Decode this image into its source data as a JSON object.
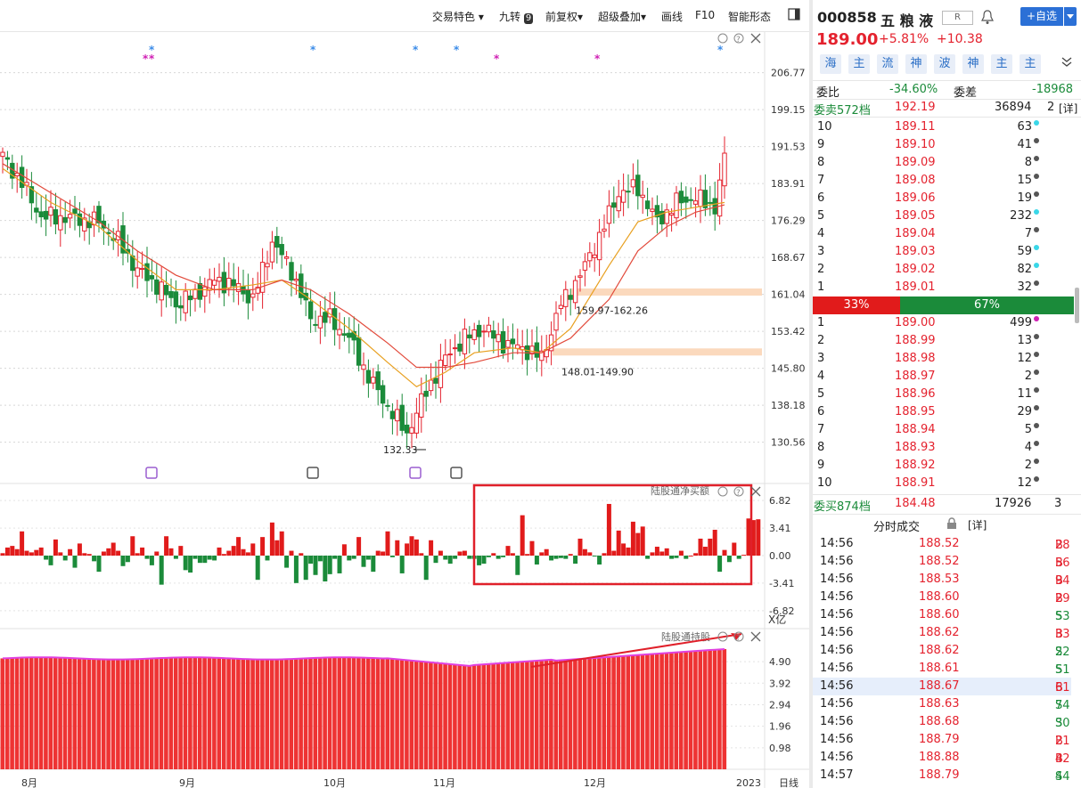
{
  "toolbar": {
    "items": [
      "交易特色 ▾",
      "九转",
      "前复权▾",
      "超级叠加▾",
      "画线",
      "F10",
      "智能形态"
    ],
    "jiuzhuan_badge": "9"
  },
  "stock": {
    "code": "000858",
    "name": "五 粮 液",
    "tag": "R",
    "add_button": "+自选",
    "price": "189.00",
    "change_pct": "+5.81%",
    "change": "+10.38",
    "tags": [
      "海",
      "主",
      "流",
      "神",
      "波",
      "神",
      "主",
      "主"
    ]
  },
  "order_book": {
    "weibi_label": "委比",
    "weibi_value": "-34.60%",
    "weicha_label": "委差",
    "weicha_value": "-18968",
    "sell_summary": {
      "label": "委卖572档",
      "price": "192.19",
      "volume": "36894",
      "count": "2",
      "detail": "[详]"
    },
    "asks": [
      {
        "level": "10",
        "price": "189.11",
        "volume": "63",
        "dot": "#3ad7e8"
      },
      {
        "level": "9",
        "price": "189.10",
        "volume": "41",
        "dot": "#555555"
      },
      {
        "level": "8",
        "price": "189.09",
        "volume": "8",
        "dot": "#555555"
      },
      {
        "level": "7",
        "price": "189.08",
        "volume": "15",
        "dot": "#555555"
      },
      {
        "level": "6",
        "price": "189.06",
        "volume": "19",
        "dot": "#555555"
      },
      {
        "level": "5",
        "price": "189.05",
        "volume": "232",
        "dot": "#3ad7e8"
      },
      {
        "level": "4",
        "price": "189.04",
        "volume": "7",
        "dot": "#555555"
      },
      {
        "level": "3",
        "price": "189.03",
        "volume": "59",
        "dot": "#3ad7e8"
      },
      {
        "level": "2",
        "price": "189.02",
        "volume": "82",
        "dot": "#3ad7e8"
      },
      {
        "level": "1",
        "price": "189.01",
        "volume": "32",
        "dot": "#555555"
      }
    ],
    "ratio_sell": "33%",
    "ratio_buy": "67%",
    "bids": [
      {
        "level": "1",
        "price": "189.00",
        "volume": "499",
        "dot": "#d01fb4"
      },
      {
        "level": "2",
        "price": "188.99",
        "volume": "13",
        "dot": "#555555"
      },
      {
        "level": "3",
        "price": "188.98",
        "volume": "12",
        "dot": "#555555"
      },
      {
        "level": "4",
        "price": "188.97",
        "volume": "2",
        "dot": "#555555"
      },
      {
        "level": "5",
        "price": "188.96",
        "volume": "11",
        "dot": "#555555"
      },
      {
        "level": "6",
        "price": "188.95",
        "volume": "29",
        "dot": "#555555"
      },
      {
        "level": "7",
        "price": "188.94",
        "volume": "5",
        "dot": "#555555"
      },
      {
        "level": "8",
        "price": "188.93",
        "volume": "4",
        "dot": "#555555"
      },
      {
        "level": "9",
        "price": "188.92",
        "volume": "2",
        "dot": "#555555"
      },
      {
        "level": "10",
        "price": "188.91",
        "volume": "12",
        "dot": "#555555"
      }
    ],
    "buy_summary": {
      "label": "委买874档",
      "price": "184.48",
      "volume": "17926",
      "count": "3"
    }
  },
  "trades": {
    "title": "分时成交",
    "detail": "[详]",
    "rows": [
      {
        "time": "14:56",
        "price": "188.52",
        "vol": "28",
        "side": "B"
      },
      {
        "time": "14:56",
        "price": "188.52",
        "vol": "56",
        "side": "B"
      },
      {
        "time": "14:56",
        "price": "188.53",
        "vol": "94",
        "side": "B"
      },
      {
        "time": "14:56",
        "price": "188.60",
        "vol": "29",
        "side": "B"
      },
      {
        "time": "14:56",
        "price": "188.60",
        "vol": "53",
        "side": "S"
      },
      {
        "time": "14:56",
        "price": "188.62",
        "vol": "33",
        "side": "B"
      },
      {
        "time": "14:56",
        "price": "188.62",
        "vol": "22",
        "side": "S"
      },
      {
        "time": "14:56",
        "price": "188.61",
        "vol": "51",
        "side": "S"
      },
      {
        "time": "14:56",
        "price": "188.67",
        "vol": "61",
        "side": "B"
      },
      {
        "time": "14:56",
        "price": "188.63",
        "vol": "74",
        "side": "S"
      },
      {
        "time": "14:56",
        "price": "188.68",
        "vol": "30",
        "side": "S"
      },
      {
        "time": "14:56",
        "price": "188.79",
        "vol": "21",
        "side": "B"
      },
      {
        "time": "14:56",
        "price": "188.88",
        "vol": "42",
        "side": "B"
      },
      {
        "time": "14:57",
        "price": "188.79",
        "vol": "44",
        "side": "S"
      }
    ]
  },
  "colors": {
    "up": "#e4222e",
    "down": "#1b8b3a",
    "ma_short": "#e8a020",
    "ma_long": "#e24a3b",
    "zone": "#fbd9bd"
  },
  "chart_data": {
    "type": "candlestick",
    "price_axis_ticks": [
      "206.77",
      "199.15",
      "191.53",
      "183.91",
      "176.29",
      "168.67",
      "161.04",
      "153.42",
      "145.80",
      "138.18",
      "130.56"
    ],
    "ylim": [
      127.0,
      210.0
    ],
    "x_labels": [
      "8月",
      "9月",
      "10月",
      "11月",
      "12月",
      "2023",
      "日线"
    ],
    "close_path": [
      [
        0,
        189.5
      ],
      [
        4,
        184
      ],
      [
        8,
        177
      ],
      [
        12,
        177
      ],
      [
        16,
        176.5
      ],
      [
        20,
        176
      ],
      [
        24,
        172
      ],
      [
        28,
        166
      ],
      [
        32,
        163
      ],
      [
        36,
        159
      ],
      [
        40,
        161
      ],
      [
        44,
        164
      ],
      [
        48,
        163
      ],
      [
        52,
        160
      ],
      [
        56,
        172
      ],
      [
        60,
        166
      ],
      [
        64,
        156
      ],
      [
        68,
        156
      ],
      [
        72,
        152
      ],
      [
        76,
        144
      ],
      [
        80,
        138
      ],
      [
        84,
        132.33
      ],
      [
        88,
        141
      ],
      [
        92,
        148
      ],
      [
        96,
        152
      ],
      [
        100,
        154
      ],
      [
        104,
        151
      ],
      [
        108,
        150
      ],
      [
        112,
        148.01
      ],
      [
        116,
        159
      ],
      [
        120,
        165
      ],
      [
        124,
        173
      ],
      [
        128,
        182
      ],
      [
        132,
        183
      ],
      [
        136,
        176
      ],
      [
        140,
        180
      ],
      [
        144,
        181
      ],
      [
        148,
        179
      ],
      [
        150,
        189
      ]
    ],
    "ma_short": [
      [
        0,
        187
      ],
      [
        10,
        180
      ],
      [
        20,
        175
      ],
      [
        28,
        168
      ],
      [
        36,
        162
      ],
      [
        44,
        162
      ],
      [
        52,
        163
      ],
      [
        58,
        164
      ],
      [
        64,
        160
      ],
      [
        72,
        154
      ],
      [
        80,
        147
      ],
      [
        86,
        142
      ],
      [
        92,
        145
      ],
      [
        98,
        149
      ],
      [
        106,
        150
      ],
      [
        112,
        149
      ],
      [
        118,
        154
      ],
      [
        126,
        167
      ],
      [
        132,
        176
      ],
      [
        138,
        178
      ],
      [
        144,
        179
      ],
      [
        150,
        180
      ]
    ],
    "ma_long": [
      [
        0,
        188
      ],
      [
        10,
        182
      ],
      [
        20,
        176
      ],
      [
        28,
        170
      ],
      [
        36,
        165
      ],
      [
        44,
        162
      ],
      [
        52,
        162
      ],
      [
        58,
        164
      ],
      [
        64,
        162
      ],
      [
        72,
        157
      ],
      [
        80,
        151
      ],
      [
        86,
        146
      ],
      [
        92,
        146
      ],
      [
        98,
        147
      ],
      [
        106,
        149
      ],
      [
        112,
        149
      ],
      [
        118,
        152
      ],
      [
        126,
        160
      ],
      [
        132,
        170
      ],
      [
        138,
        175
      ],
      [
        144,
        178
      ],
      [
        150,
        179.5
      ]
    ],
    "annotations": [
      {
        "text": "159.97-162.26",
        "low": 159.97,
        "high": 162.26
      },
      {
        "text": "148.01-149.90",
        "low": 148.01,
        "high": 149.9
      },
      {
        "text": "132.33",
        "value": 132.33
      }
    ],
    "flow": {
      "title": "陆股通净买额",
      "unit": "X亿",
      "ticks": [
        "6.82",
        "3.41",
        "0.00",
        "-3.41",
        "-6.82"
      ],
      "ylim": [
        -7.5,
        7.5
      ],
      "values": [
        0.3,
        1.0,
        1.2,
        0.8,
        3.0,
        0.6,
        0.4,
        0.7,
        1.0,
        -0.5,
        -1.2,
        2.0,
        0.4,
        -0.6,
        0.8,
        -1.5,
        1.5,
        0.3,
        0.2,
        -0.7,
        -2.0,
        0.5,
        0.9,
        1.6,
        0.6,
        -1.3,
        -0.8,
        2.4,
        0.3,
        1.0,
        -0.4,
        -1.2,
        0.5,
        -3.6,
        2.4,
        0.9,
        -0.4,
        1.2,
        -1.8,
        -2.1,
        -0.4,
        -0.9,
        -0.9,
        -0.5,
        -0.6,
        1.0,
        0.2,
        0.6,
        1.2,
        2.3,
        0.8,
        0.4,
        1.5,
        -3.0,
        2.3,
        -0.6,
        4.1,
        1.9,
        3.0,
        -1.5,
        0.6,
        -3.4,
        0.3,
        -3.0,
        -1.0,
        -2.4,
        -0.7,
        -3.2,
        -2.3,
        -0.4,
        -2.2,
        1.4,
        -0.6,
        -0.4,
        2.3,
        -1.4,
        -0.5,
        -2.0,
        0.6,
        0.5,
        3.0,
        -0.2,
        1.9,
        -2.2,
        1.5,
        2.4,
        2.0,
        0.3,
        -3.0,
        1.9,
        -0.9,
        0.6,
        -0.5,
        -1.0,
        -0.4,
        0.5,
        0.6,
        -0.4,
        -0.4,
        -1.2,
        -1.0,
        -0.2,
        0.3,
        -0.4,
        -0.2,
        1.2,
        0.3,
        -2.4,
        5.0,
        0.2,
        1.8,
        -1.1,
        0.4,
        0.8,
        -0.6,
        -0.4,
        -0.3,
        -0.4,
        0.2,
        -1.0,
        2.1,
        0.8,
        0.4,
        -0.1,
        -1.1,
        0.3,
        6.4,
        0.6,
        3.1,
        1.5,
        1.0,
        4.2,
        2.8,
        3.6,
        -0.4,
        0.4,
        1.1,
        0.5,
        0.9,
        -0.4,
        -0.3,
        0.6,
        -0.4,
        0.0,
        0.3,
        2.1,
        1.1,
        2.1,
        3.2,
        -2.0,
        0.7,
        -0.8,
        1.6,
        -0.4,
        0.1,
        4.6,
        4.4,
        4.5
      ]
    },
    "holding": {
      "title": "陆股通持股",
      "ticks": [
        "4.90",
        "3.92",
        "2.94",
        "1.96",
        "0.98"
      ],
      "ylim": [
        0,
        6.0
      ]
    }
  }
}
